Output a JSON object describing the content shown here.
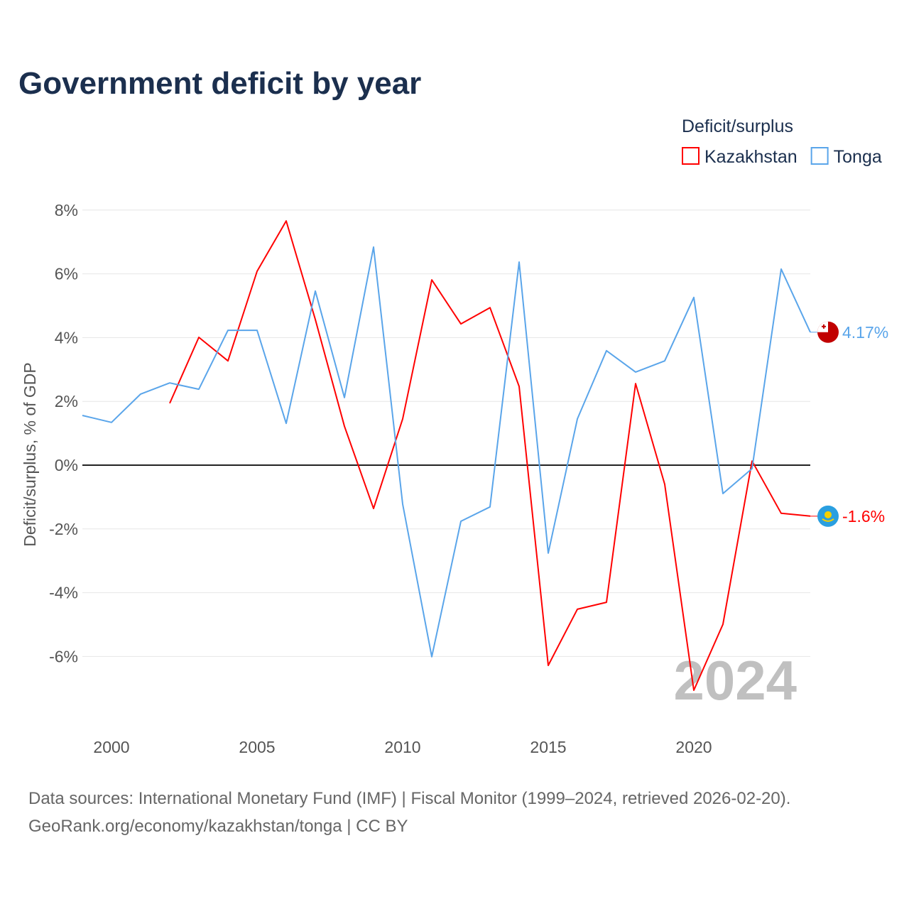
{
  "title": "Government deficit by year",
  "legend": {
    "title": "Deficit/surplus",
    "position": "top-right"
  },
  "watermark_year": "2024",
  "sources": {
    "line1": "Data sources: International Monetary Fund (IMF) | Fiscal Monitor (1999–2024, retrieved 2026-02-20).",
    "line2": "GeoRank.org/economy/kazakhstan/tonga | CC BY"
  },
  "chart_data": {
    "type": "line",
    "title": "Government deficit by year",
    "xlabel": "",
    "ylabel": "Deficit/surplus, % of GDP",
    "xlim": [
      1999,
      2024
    ],
    "ylim": [
      -8,
      8.5
    ],
    "xticks": [
      2000,
      2005,
      2010,
      2015,
      2020
    ],
    "yticks": [
      -6,
      -4,
      -2,
      0,
      2,
      4,
      6,
      8
    ],
    "ytick_labels": [
      "-6%",
      "-4%",
      "-2%",
      "0%",
      "2%",
      "4%",
      "6%",
      "8%"
    ],
    "grid": true,
    "series": [
      {
        "name": "Kazakhstan",
        "color": "#ff0000",
        "end_label": "-1.6%",
        "x": [
          2002,
          2003,
          2004,
          2005,
          2006,
          2007,
          2008,
          2009,
          2010,
          2011,
          2012,
          2013,
          2014,
          2015,
          2016,
          2017,
          2018,
          2019,
          2020,
          2021,
          2022,
          2023,
          2024
        ],
        "values": [
          1.94,
          4.01,
          3.27,
          6.08,
          7.66,
          4.57,
          1.22,
          -1.36,
          1.45,
          5.81,
          4.43,
          4.94,
          2.47,
          -6.28,
          -4.52,
          -4.3,
          2.56,
          -0.6,
          -7.06,
          -4.99,
          0.13,
          -1.51,
          -1.6
        ]
      },
      {
        "name": "Tonga",
        "color": "#5aa5ea",
        "end_label": "4.17%",
        "x": [
          1999,
          2000,
          2001,
          2002,
          2003,
          2004,
          2005,
          2006,
          2007,
          2008,
          2009,
          2010,
          2011,
          2012,
          2013,
          2014,
          2015,
          2016,
          2017,
          2018,
          2019,
          2020,
          2021,
          2022,
          2023,
          2024
        ],
        "values": [
          1.56,
          1.34,
          2.23,
          2.58,
          2.38,
          4.23,
          4.23,
          1.31,
          5.46,
          2.12,
          6.84,
          -1.22,
          -6.01,
          -1.76,
          -1.31,
          6.37,
          -2.76,
          1.45,
          3.59,
          2.92,
          3.27,
          5.26,
          -0.89,
          -0.11,
          6.15,
          4.17
        ]
      }
    ]
  }
}
